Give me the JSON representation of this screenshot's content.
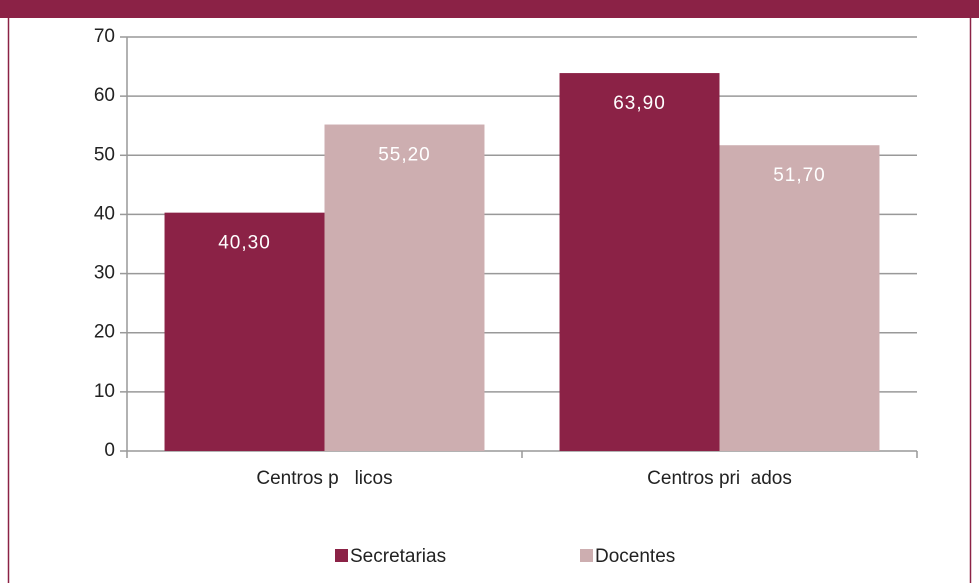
{
  "chart_data": {
    "type": "bar",
    "categories": [
      "Centros p   licos",
      "Centros pri  ados"
    ],
    "series": [
      {
        "name": "Secretarias",
        "color": "#8b2246",
        "values": [
          40.3,
          63.9
        ],
        "value_labels": [
          "40,30",
          "63,90"
        ]
      },
      {
        "name": "Docentes",
        "color": "#cdaeb0",
        "values": [
          55.2,
          51.7
        ],
        "value_labels": [
          "55,20",
          "51,70"
        ]
      }
    ],
    "ylim": [
      0,
      70
    ],
    "yticks": [
      0,
      10,
      20,
      30,
      40,
      50,
      60,
      70
    ],
    "grid": true,
    "legend": "bottom"
  }
}
